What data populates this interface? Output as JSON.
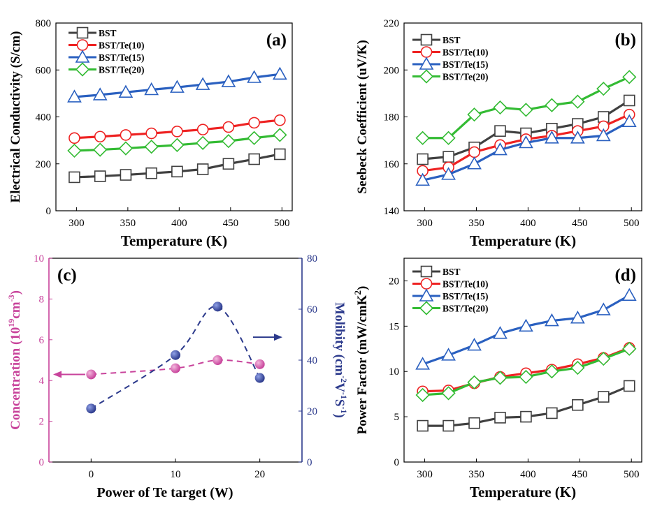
{
  "colors": {
    "BST": "#404040",
    "BST_Te10": "#ee2222",
    "BST_Te15": "#2a60c0",
    "BST_Te20": "#33bb33",
    "magenta": "#c8439b",
    "navy": "#2c3a8c"
  },
  "chart_data": [
    {
      "id": "a",
      "panel_label": "(a)",
      "type": "line",
      "xlabel": "Temperature (K)",
      "ylabel": "Electrical Conductivity (S/cm)",
      "xlim": [
        280,
        510
      ],
      "ylim": [
        0,
        800
      ],
      "xticks": [
        "300",
        "350",
        "400",
        "450",
        "500"
      ],
      "yticks": [
        "0",
        "200",
        "400",
        "600",
        "800"
      ],
      "x": [
        298,
        323,
        348,
        373,
        398,
        423,
        448,
        473,
        498
      ],
      "series": [
        {
          "name": "BST",
          "marker": "square",
          "color": "#404040",
          "values": [
            143,
            147,
            153,
            160,
            167,
            177,
            200,
            220,
            241
          ]
        },
        {
          "name": "BST/Te(10)",
          "marker": "circle",
          "color": "#ee2222",
          "values": [
            310,
            316,
            323,
            330,
            338,
            346,
            357,
            375,
            386
          ]
        },
        {
          "name": "BST/Te(15)",
          "marker": "triangle",
          "color": "#2a60c0",
          "values": [
            485,
            494,
            505,
            516,
            526,
            538,
            550,
            568,
            582
          ]
        },
        {
          "name": "BST/Te(20)",
          "marker": "diamond",
          "color": "#33bb33",
          "values": [
            256,
            260,
            266,
            273,
            280,
            289,
            297,
            310,
            323
          ]
        }
      ]
    },
    {
      "id": "b",
      "panel_label": "(b)",
      "type": "line",
      "xlabel": "Temperature (K)",
      "ylabel": "Seebeck Coefficient (uV/K)",
      "xlim": [
        280,
        510
      ],
      "ylim": [
        140,
        220
      ],
      "xticks": [
        "300",
        "350",
        "400",
        "450",
        "500"
      ],
      "yticks": [
        "140",
        "160",
        "180",
        "200",
        "220"
      ],
      "x": [
        298,
        323,
        348,
        373,
        398,
        423,
        448,
        473,
        498
      ],
      "series": [
        {
          "name": "BST",
          "marker": "square",
          "color": "#404040",
          "values": [
            162,
            163,
            167,
            174,
            173,
            175,
            177,
            180,
            187
          ]
        },
        {
          "name": "BST/Te(10)",
          "marker": "circle",
          "color": "#ee2222",
          "values": [
            157,
            158.5,
            165,
            168,
            170.5,
            172,
            174,
            176,
            181
          ]
        },
        {
          "name": "BST/Te(15)",
          "marker": "triangle",
          "color": "#2a60c0",
          "values": [
            153,
            155.5,
            160,
            166,
            169,
            171,
            171,
            172,
            178
          ]
        },
        {
          "name": "BST/Te(20)",
          "marker": "diamond",
          "color": "#33bb33",
          "values": [
            171,
            171,
            181,
            184,
            183,
            185,
            186.5,
            192,
            197
          ]
        }
      ]
    },
    {
      "id": "c",
      "panel_label": "(c)",
      "type": "scatter",
      "xlabel": "Power of Te target (W)",
      "ylabel_left": "Concentration (10^19 cm^-3)",
      "ylabel_right": "Molibity (cm^-2 V-1 S-1)",
      "xlim": [
        -5,
        25
      ],
      "ylim_left": [
        0,
        10
      ],
      "ylim_right": [
        0,
        80
      ],
      "xticks": [
        "0",
        "10",
        "20"
      ],
      "yticks_left": [
        "0",
        "2",
        "4",
        "6",
        "8",
        "10"
      ],
      "yticks_right": [
        "0",
        "20",
        "40",
        "60",
        "80"
      ],
      "series": [
        {
          "name": "Concentration",
          "axis": "left",
          "color": "#c8439b",
          "x": [
            0,
            10,
            15,
            20
          ],
          "values": [
            4.3,
            4.6,
            5.0,
            4.8
          ]
        },
        {
          "name": "Molibity",
          "axis": "right",
          "color": "#2c3a8c",
          "x": [
            0,
            10,
            15,
            20
          ],
          "values": [
            21,
            42,
            61,
            33
          ]
        }
      ]
    },
    {
      "id": "d",
      "panel_label": "(d)",
      "type": "line",
      "xlabel": "Temperature (K)",
      "ylabel": "Power Factor (mW/cmK^2)",
      "xlim": [
        280,
        510
      ],
      "ylim": [
        0,
        22.5
      ],
      "xticks": [
        "300",
        "350",
        "400",
        "450",
        "500"
      ],
      "yticks": [
        "0",
        "5",
        "10",
        "15",
        "20"
      ],
      "x": [
        298,
        323,
        348,
        373,
        398,
        423,
        448,
        473,
        498
      ],
      "series": [
        {
          "name": "BST",
          "marker": "square",
          "color": "#404040",
          "values": [
            4.0,
            4.0,
            4.3,
            4.9,
            5.0,
            5.4,
            6.3,
            7.2,
            8.4
          ]
        },
        {
          "name": "BST/Te(10)",
          "marker": "circle",
          "color": "#ee2222",
          "values": [
            7.8,
            7.9,
            8.7,
            9.4,
            9.8,
            10.2,
            10.8,
            11.5,
            12.6
          ]
        },
        {
          "name": "BST/Te(15)",
          "marker": "triangle",
          "color": "#2a60c0",
          "values": [
            10.8,
            11.8,
            12.9,
            14.2,
            15.0,
            15.6,
            15.9,
            16.8,
            18.4
          ]
        },
        {
          "name": "BST/Te(20)",
          "marker": "diamond",
          "color": "#33bb33",
          "values": [
            7.4,
            7.6,
            8.8,
            9.3,
            9.4,
            10.0,
            10.4,
            11.4,
            12.5
          ]
        }
      ]
    }
  ]
}
